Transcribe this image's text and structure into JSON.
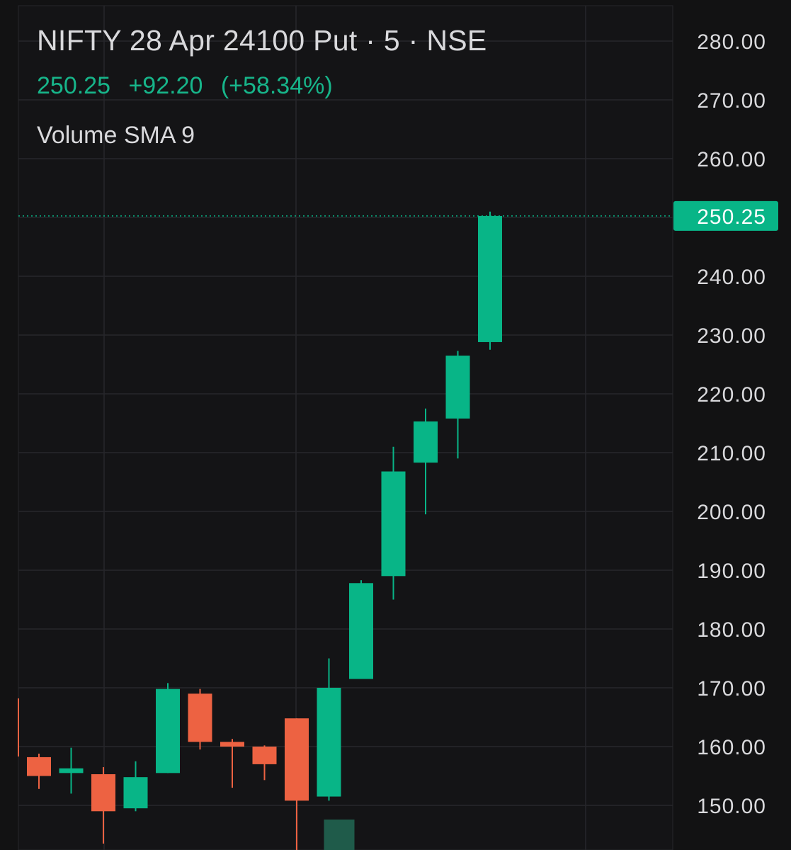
{
  "header": {
    "symbol_title": "NIFTY 28 Apr 24100 Put · 5 · NSE",
    "last_price": "250.25",
    "change": "+92.20",
    "change_pct": "(+58.34%)",
    "indicator_label": "Volume SMA 9"
  },
  "colors": {
    "background": "#121213",
    "up": "#08b587",
    "down": "#ed6242",
    "grid": "#26272b",
    "axis_text": "#d9d9dc",
    "volume_up": "#1f5b4a"
  },
  "chart_data": {
    "type": "candlestick",
    "title": "NIFTY 28 Apr 24100 Put · 5 · NSE",
    "ylim": [
      144,
      286
    ],
    "y_ticks": [
      "150.00",
      "160.00",
      "170.00",
      "180.00",
      "190.00",
      "200.00",
      "210.00",
      "220.00",
      "230.00",
      "240.00",
      "250.00",
      "260.00",
      "270.00",
      "280.00"
    ],
    "last_price_marker": "250.25",
    "grid": true,
    "candles": [
      {
        "open": 158.2,
        "high": 158.8,
        "low": 152.8,
        "close": 155.0
      },
      {
        "open": 155.5,
        "high": 159.8,
        "low": 152.0,
        "close": 156.3
      },
      {
        "open": 155.3,
        "high": 156.5,
        "low": 143.5,
        "close": 149.0
      },
      {
        "open": 149.5,
        "high": 157.5,
        "low": 149.0,
        "close": 154.8
      },
      {
        "open": 155.5,
        "high": 170.8,
        "low": 155.5,
        "close": 169.8
      },
      {
        "open": 169.0,
        "high": 169.8,
        "low": 159.5,
        "close": 160.8
      },
      {
        "open": 160.8,
        "high": 161.3,
        "low": 153.0,
        "close": 160.0
      },
      {
        "open": 160.0,
        "high": 160.2,
        "low": 154.3,
        "close": 157.0
      },
      {
        "open": 164.8,
        "high": 164.8,
        "low": 136.0,
        "close": 150.8
      },
      {
        "open": 151.5,
        "high": 175.0,
        "low": 150.8,
        "close": 170.0
      },
      {
        "open": 171.5,
        "high": 188.3,
        "low": 171.5,
        "close": 187.8
      },
      {
        "open": 189.0,
        "high": 211.0,
        "low": 185.0,
        "close": 206.8
      },
      {
        "open": 208.3,
        "high": 217.5,
        "low": 199.5,
        "close": 215.3
      },
      {
        "open": 215.8,
        "high": 227.3,
        "low": 209.0,
        "close": 226.5
      },
      {
        "open": 228.8,
        "high": 251.0,
        "low": 227.5,
        "close": 250.25
      }
    ]
  }
}
